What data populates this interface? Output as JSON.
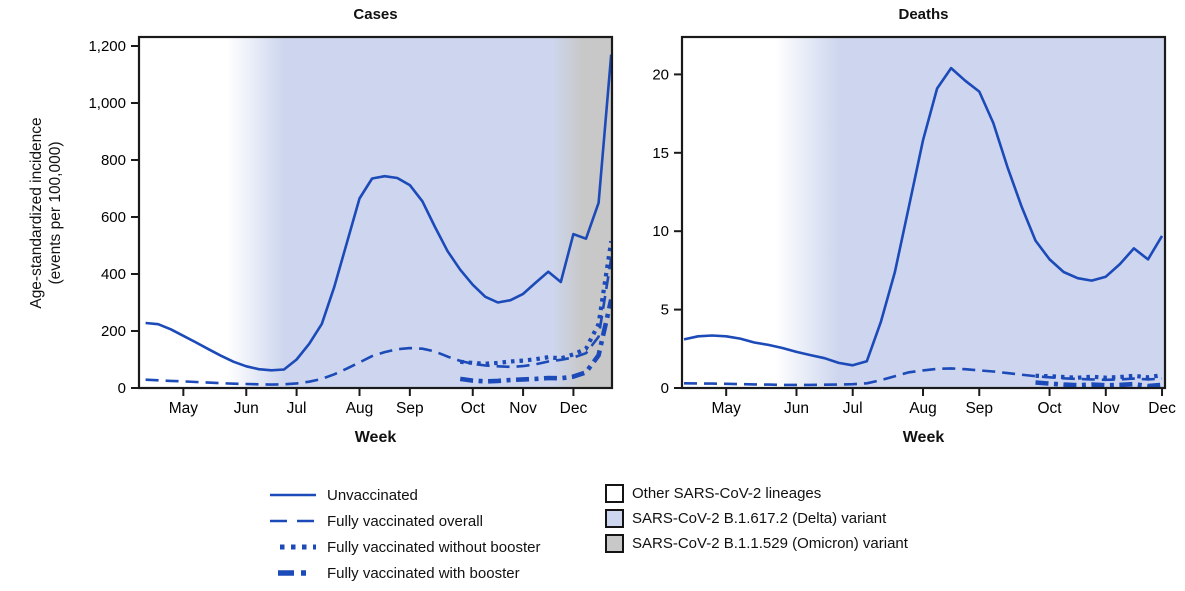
{
  "figure": {
    "y_axis_label_line1": "Age-standardized incidence",
    "y_axis_label_line2": "(events per 100,000)",
    "x_axis_label": "Week"
  },
  "colors": {
    "line_blue": "#1c4ab8",
    "delta_fill": "#cdd6ee",
    "omicron_fill": "#c8c8c8",
    "white_fill": "#ffffff",
    "axis": "#1a1a1a"
  },
  "legend": {
    "series": [
      {
        "label": "Unvaccinated",
        "style": "solid"
      },
      {
        "label": "Fully vaccinated overall",
        "style": "dashed"
      },
      {
        "label": "Fully vaccinated without booster",
        "style": "dotted"
      },
      {
        "label": "Fully vaccinated with booster",
        "style": "dashdot"
      }
    ],
    "regions": [
      {
        "label": "Other SARS-CoV-2 lineages",
        "fill": "#ffffff"
      },
      {
        "label": "SARS-CoV-2 B.1.617.2 (Delta) variant",
        "fill": "#cdd6ee"
      },
      {
        "label": "SARS-CoV-2 B.1.1.529 (Omicron) variant",
        "fill": "#c8c8c8"
      }
    ]
  },
  "chart_data": [
    {
      "type": "line",
      "title": "Cases",
      "xlabel": "Week",
      "ylabel": "Age-standardized incidence (events per 100,000)",
      "ylim": [
        0,
        1200
      ],
      "y_ticks": [
        "0",
        "200",
        "400",
        "600",
        "800",
        "1,000",
        "1,200"
      ],
      "y_tick_values": [
        0,
        200,
        400,
        600,
        800,
        1000,
        1200
      ],
      "x_tick_labels": [
        "May",
        "Jun",
        "Jul",
        "Aug",
        "Sep",
        "Oct",
        "Nov",
        "Dec"
      ],
      "x_tick_weeks": [
        3,
        8,
        12,
        17,
        21,
        26,
        30,
        34
      ],
      "n_weeks": 38,
      "variant_bands": {
        "white_until_week": 6.5,
        "delta_full_from_week": 11,
        "omicron_start_week": 32.3,
        "omicron_full_from_week": 34.7
      },
      "series": [
        {
          "name": "Unvaccinated",
          "style": "solid",
          "start_week": 0,
          "values": [
            228,
            224,
            206,
            183,
            160,
            136,
            113,
            92,
            76,
            66,
            62,
            65,
            100,
            155,
            225,
            355,
            510,
            665,
            735,
            743,
            737,
            712,
            655,
            565,
            480,
            415,
            362,
            320,
            300,
            308,
            330,
            370,
            408,
            372,
            540,
            524,
            650,
            1170
          ]
        },
        {
          "name": "Fully vaccinated overall",
          "style": "dashed",
          "start_week": 0,
          "values": [
            29,
            27,
            25,
            23,
            21,
            19,
            17,
            15,
            14,
            13,
            12,
            13,
            16,
            22,
            32,
            48,
            68,
            90,
            112,
            126,
            136,
            140,
            138,
            128,
            110,
            95,
            85,
            79,
            76,
            74,
            77,
            83,
            93,
            99,
            107,
            122,
            180,
            455
          ]
        },
        {
          "name": "Fully vaccinated without booster",
          "style": "dotted",
          "start_week": 25,
          "values": [
            92,
            88,
            85,
            88,
            93,
            96,
            101,
            108,
            104,
            118,
            138,
            225,
            515
          ]
        },
        {
          "name": "Fully vaccinated with booster",
          "style": "dashdot",
          "start_week": 25,
          "values": [
            32,
            26,
            23,
            25,
            28,
            30,
            32,
            35,
            34,
            40,
            55,
            115,
            310
          ]
        }
      ]
    },
    {
      "type": "line",
      "title": "Deaths",
      "xlabel": "Week",
      "ylabel": "Age-standardized incidence (events per 100,000)",
      "ylim": [
        0,
        20
      ],
      "y_ticks": [
        "0",
        "5",
        "10",
        "15",
        "20"
      ],
      "y_tick_values": [
        0,
        5,
        10,
        15,
        20
      ],
      "x_tick_labels": [
        "May",
        "Jun",
        "Jul",
        "Aug",
        "Sep",
        "Oct",
        "Nov",
        "Dec"
      ],
      "x_tick_weeks": [
        3,
        8,
        12,
        17,
        21,
        26,
        30,
        34
      ],
      "n_weeks": 35,
      "variant_bands": {
        "white_until_week": 6.5,
        "delta_full_from_week": 11
      },
      "series": [
        {
          "name": "Unvaccinated",
          "style": "solid",
          "start_week": 0,
          "values": [
            3.1,
            3.3,
            3.35,
            3.3,
            3.15,
            2.9,
            2.75,
            2.55,
            2.3,
            2.1,
            1.9,
            1.6,
            1.45,
            1.7,
            4.2,
            7.4,
            11.6,
            15.8,
            19.1,
            20.4,
            19.6,
            18.9,
            16.9,
            14.1,
            11.6,
            9.4,
            8.2,
            7.4,
            7.0,
            6.85,
            7.1,
            7.9,
            8.9,
            8.2,
            9.7
          ]
        },
        {
          "name": "Fully vaccinated overall",
          "style": "dashed",
          "start_week": 0,
          "values": [
            0.3,
            0.29,
            0.28,
            0.27,
            0.25,
            0.23,
            0.22,
            0.2,
            0.2,
            0.2,
            0.21,
            0.22,
            0.24,
            0.3,
            0.5,
            0.75,
            1.0,
            1.12,
            1.22,
            1.25,
            1.2,
            1.12,
            1.05,
            0.95,
            0.85,
            0.75,
            0.68,
            0.62,
            0.58,
            0.55,
            0.52,
            0.55,
            0.6,
            0.55,
            0.6
          ]
        },
        {
          "name": "Fully vaccinated without booster",
          "style": "dotted",
          "start_week": 25,
          "values": [
            0.78,
            0.75,
            0.7,
            0.66,
            0.72,
            0.66,
            0.7,
            0.78,
            0.68,
            0.82
          ]
        },
        {
          "name": "Fully vaccinated with booster",
          "style": "dashdot",
          "start_week": 25,
          "values": [
            0.35,
            0.28,
            0.22,
            0.18,
            0.22,
            0.17,
            0.2,
            0.25,
            0.12,
            0.2
          ]
        }
      ]
    }
  ]
}
